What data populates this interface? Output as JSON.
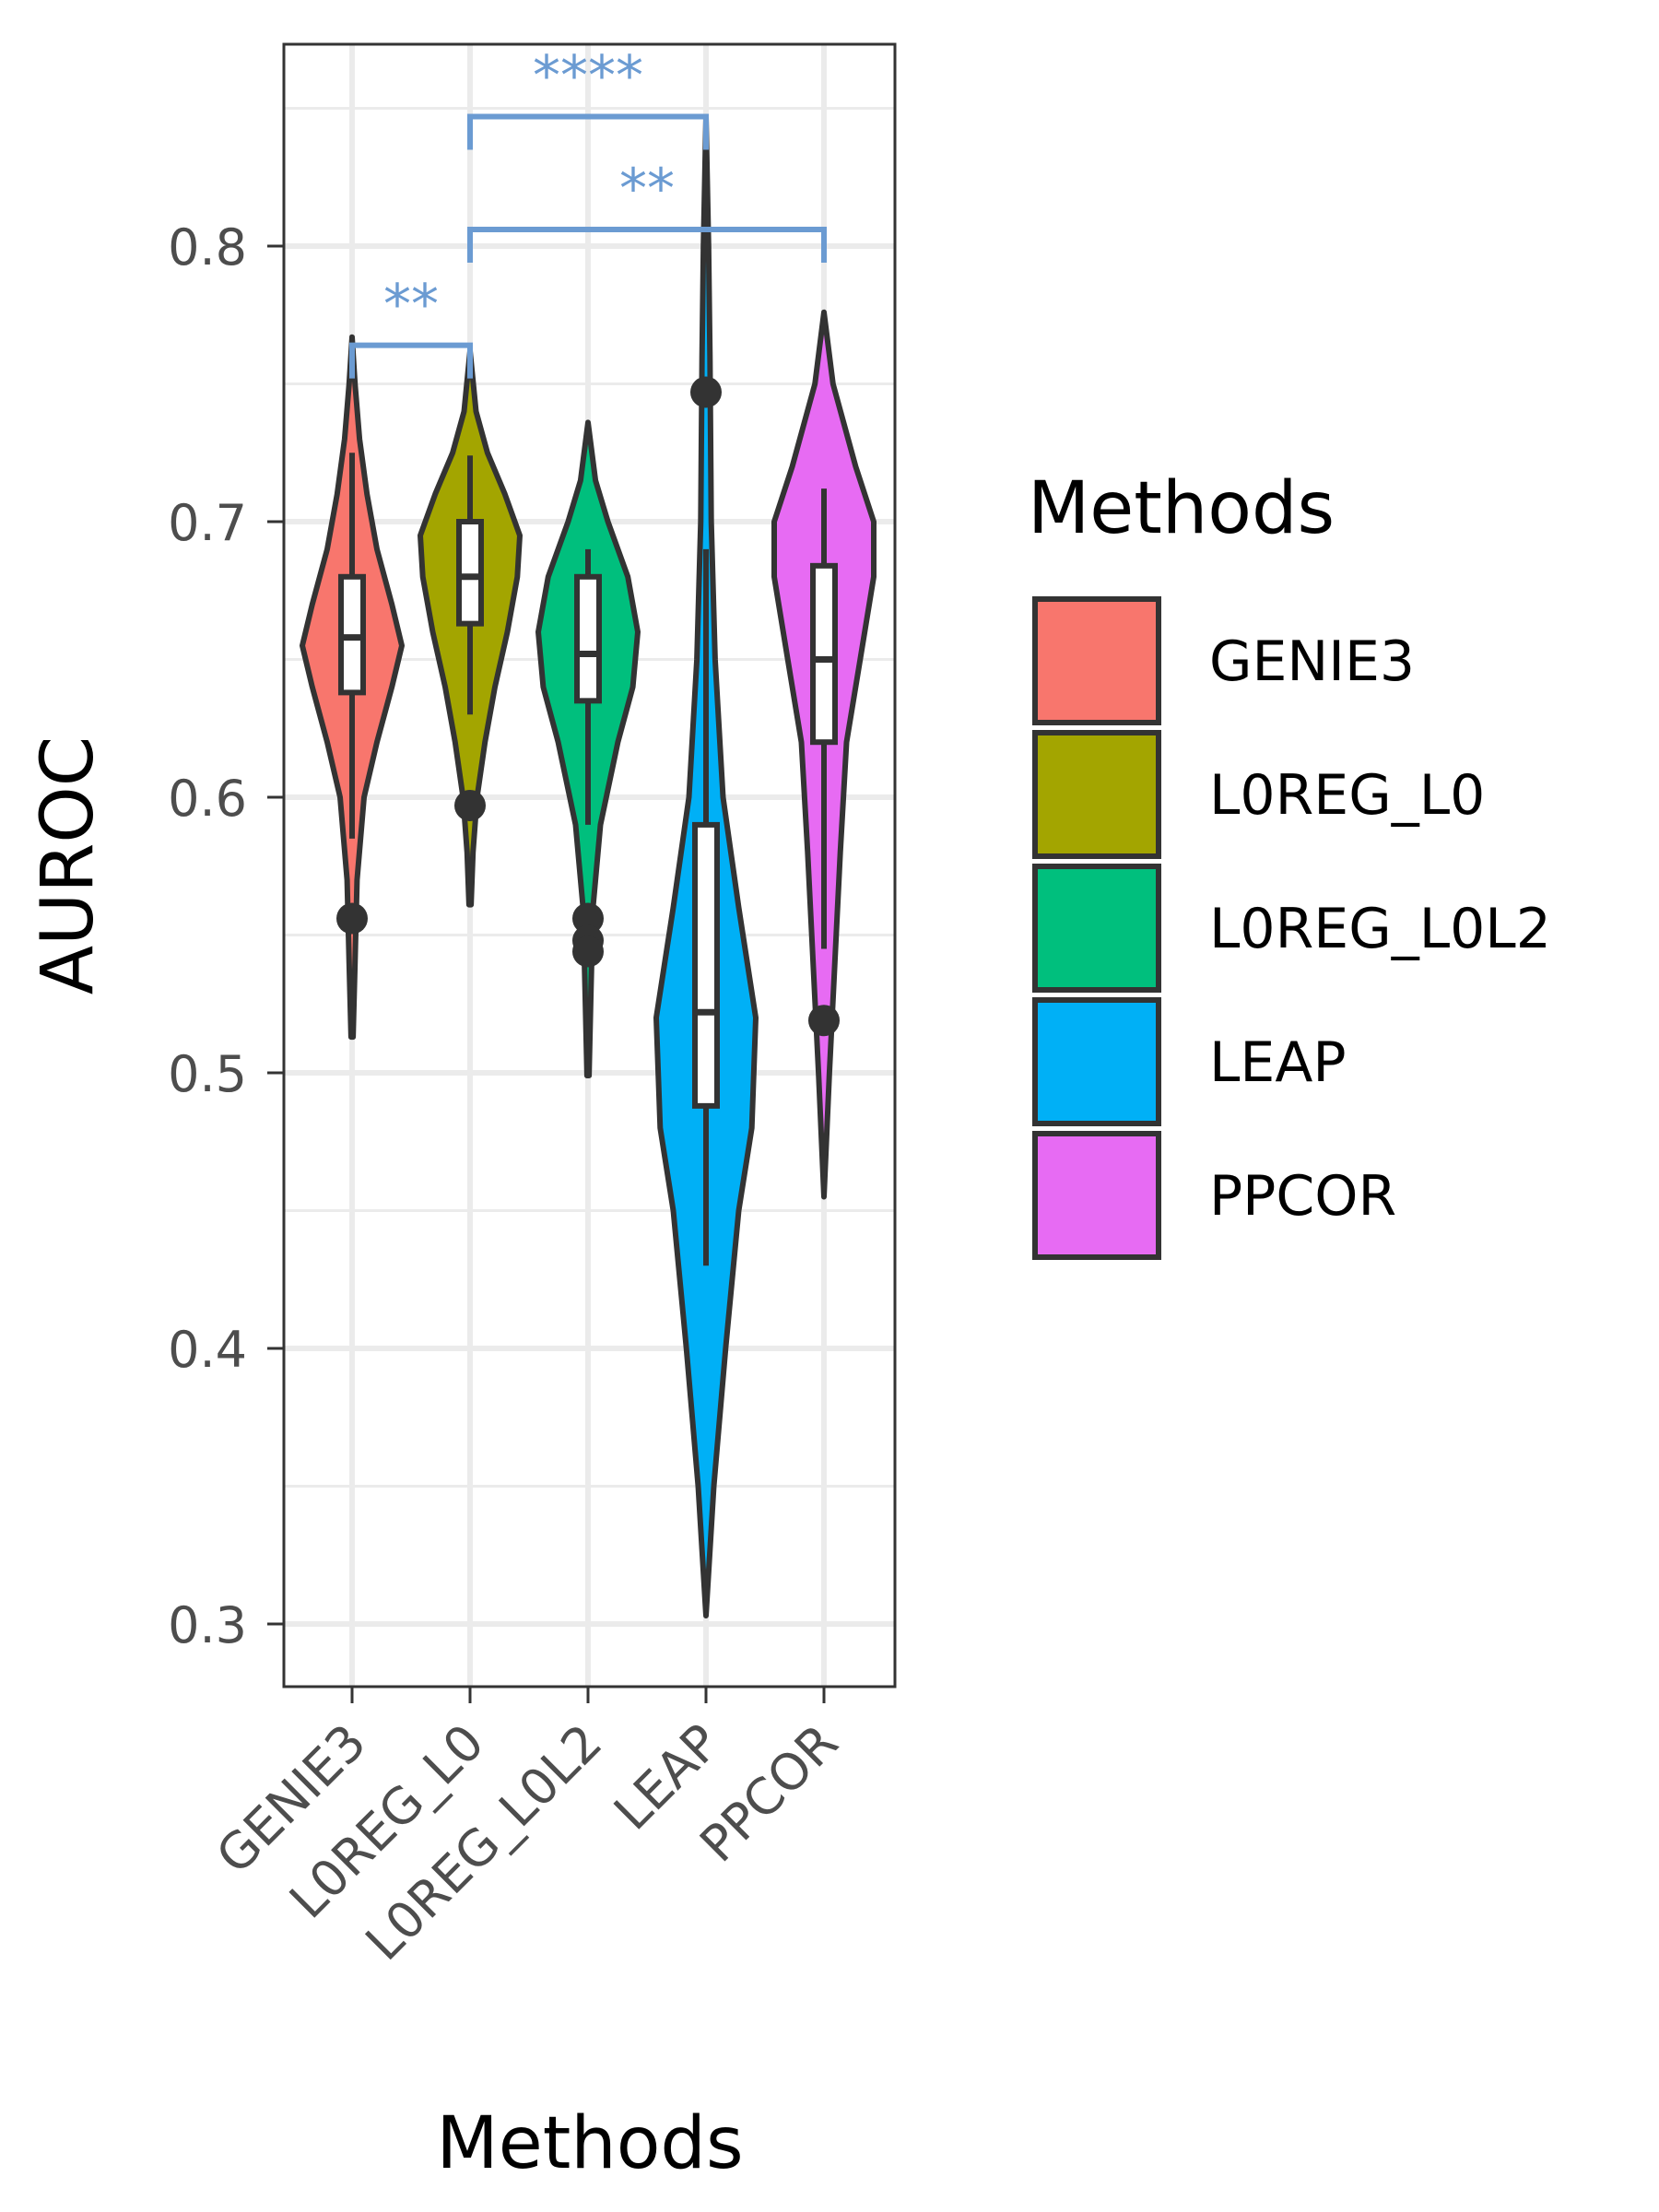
{
  "chart_data": {
    "type": "violin",
    "title": "",
    "xlabel": "Methods",
    "ylabel": "AUROC",
    "ylim": [
      0.275,
      0.87
    ],
    "yticks": [
      0.3,
      0.4,
      0.5,
      0.6,
      0.7,
      0.8
    ],
    "ytick_labels": [
      "0.3",
      "0.4",
      "0.5",
      "0.6",
      "0.7",
      "0.8"
    ],
    "grid": true,
    "legend": {
      "title": "Methods",
      "position": "right"
    },
    "categories": [
      "GENIE3",
      "L0REG_L0",
      "L0REG_L0L2",
      "LEAP",
      "PPCOR"
    ],
    "series": [
      {
        "name": "GENIE3",
        "color": "#F8766D",
        "box": {
          "lower_whisker": 0.585,
          "q1": 0.638,
          "median": 0.658,
          "q3": 0.68,
          "upper_whisker": 0.725
        },
        "outliers": [
          0.556
        ],
        "density": [
          [
            0.513,
            0.002
          ],
          [
            0.54,
            0.006
          ],
          [
            0.57,
            0.01
          ],
          [
            0.6,
            0.024
          ],
          [
            0.62,
            0.05
          ],
          [
            0.64,
            0.08
          ],
          [
            0.655,
            0.1
          ],
          [
            0.67,
            0.08
          ],
          [
            0.69,
            0.05
          ],
          [
            0.71,
            0.03
          ],
          [
            0.73,
            0.015
          ],
          [
            0.75,
            0.006
          ],
          [
            0.767,
            0.0
          ]
        ]
      },
      {
        "name": "L0REG_L0",
        "color": "#A3A500",
        "box": {
          "lower_whisker": 0.63,
          "q1": 0.663,
          "median": 0.68,
          "q3": 0.7,
          "upper_whisker": 0.724
        },
        "outliers": [
          0.597
        ],
        "density": [
          [
            0.561,
            0.002
          ],
          [
            0.58,
            0.006
          ],
          [
            0.6,
            0.014
          ],
          [
            0.62,
            0.03
          ],
          [
            0.64,
            0.05
          ],
          [
            0.66,
            0.075
          ],
          [
            0.68,
            0.095
          ],
          [
            0.695,
            0.1
          ],
          [
            0.71,
            0.07
          ],
          [
            0.725,
            0.035
          ],
          [
            0.74,
            0.012
          ],
          [
            0.762,
            0.0
          ]
        ]
      },
      {
        "name": "L0REG_L0L2",
        "color": "#00BF7D",
        "box": {
          "lower_whisker": 0.59,
          "q1": 0.635,
          "median": 0.652,
          "q3": 0.68,
          "upper_whisker": 0.69
        },
        "outliers": [
          0.556,
          0.548,
          0.544
        ],
        "density": [
          [
            0.499,
            0.002
          ],
          [
            0.53,
            0.006
          ],
          [
            0.56,
            0.01
          ],
          [
            0.59,
            0.025
          ],
          [
            0.62,
            0.06
          ],
          [
            0.64,
            0.09
          ],
          [
            0.66,
            0.1
          ],
          [
            0.68,
            0.08
          ],
          [
            0.7,
            0.04
          ],
          [
            0.715,
            0.015
          ],
          [
            0.736,
            0.0
          ]
        ]
      },
      {
        "name": "LEAP",
        "color": "#00B0F6",
        "box": {
          "lower_whisker": 0.43,
          "q1": 0.488,
          "median": 0.522,
          "q3": 0.59,
          "upper_whisker": 0.69
        },
        "outliers": [
          0.747
        ],
        "density": [
          [
            0.303,
            0.0
          ],
          [
            0.35,
            0.006
          ],
          [
            0.4,
            0.015
          ],
          [
            0.45,
            0.025
          ],
          [
            0.48,
            0.035
          ],
          [
            0.52,
            0.038
          ],
          [
            0.56,
            0.025
          ],
          [
            0.6,
            0.013
          ],
          [
            0.65,
            0.007
          ],
          [
            0.7,
            0.004
          ],
          [
            0.76,
            0.003
          ],
          [
            0.8,
            0.002
          ],
          [
            0.847,
            0.0
          ]
        ]
      },
      {
        "name": "PPCOR",
        "color": "#E76BF3",
        "box": {
          "lower_whisker": 0.545,
          "q1": 0.62,
          "median": 0.65,
          "q3": 0.684,
          "upper_whisker": 0.712
        },
        "outliers": [
          0.519
        ],
        "density": [
          [
            0.455,
            0.0
          ],
          [
            0.5,
            0.006
          ],
          [
            0.54,
            0.012
          ],
          [
            0.58,
            0.018
          ],
          [
            0.62,
            0.025
          ],
          [
            0.65,
            0.04
          ],
          [
            0.68,
            0.055
          ],
          [
            0.7,
            0.055
          ],
          [
            0.72,
            0.035
          ],
          [
            0.75,
            0.01
          ],
          [
            0.776,
            0.0
          ]
        ]
      }
    ],
    "significance": [
      {
        "from": "GENIE3",
        "to": "L0REG_L0",
        "y": 0.764,
        "label": "**"
      },
      {
        "from": "L0REG_L0",
        "to": "PPCOR",
        "y": 0.806,
        "label": "**"
      },
      {
        "from": "L0REG_L0",
        "to": "LEAP",
        "y": 0.847,
        "label": "****"
      }
    ],
    "significance_color": "#6B9BD2"
  }
}
